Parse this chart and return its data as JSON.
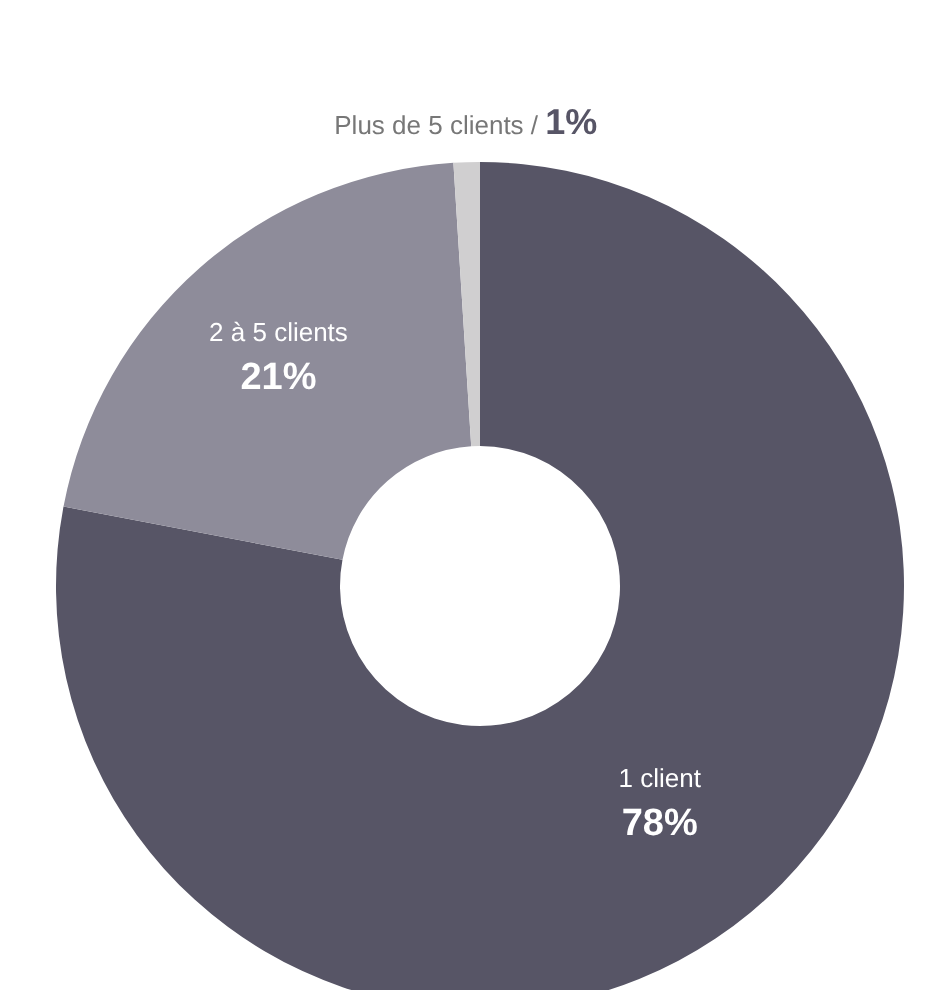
{
  "chart_data": {
    "type": "donut",
    "categories": [
      "1 client",
      "2 à 5 clients",
      "Plus de 5 clients"
    ],
    "values": [
      78,
      21,
      1
    ],
    "value_labels": [
      "78%",
      "21%",
      "/ 1%"
    ],
    "colors": [
      "#575566",
      "#8e8c9a",
      "#d0cfd0"
    ]
  }
}
